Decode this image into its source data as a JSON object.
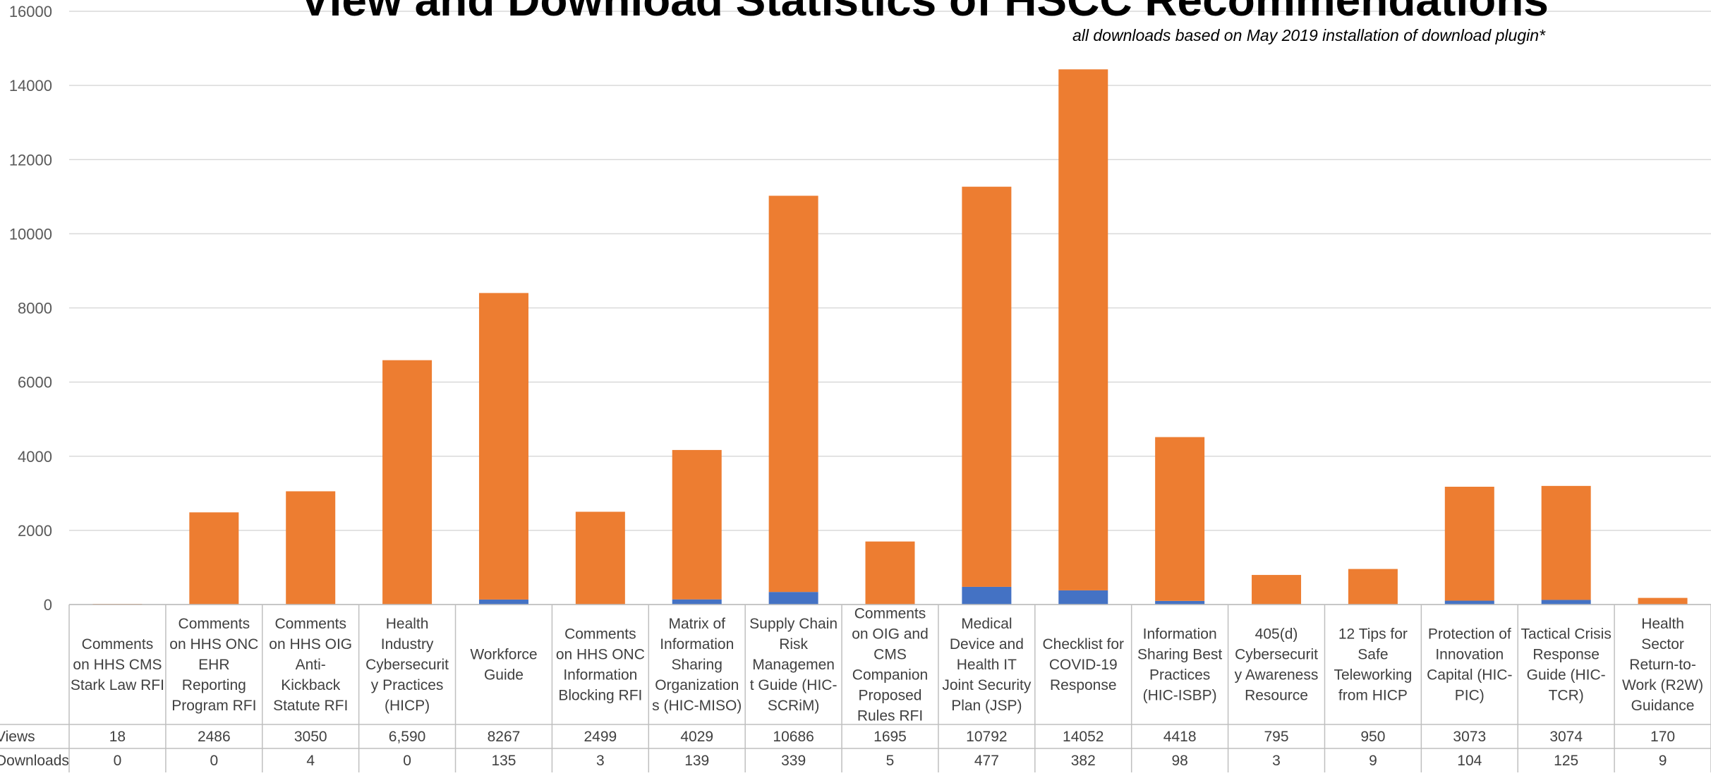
{
  "chart_data": {
    "type": "bar",
    "stacked": true,
    "title": "View and Download Statistics of HSCC Recommendations",
    "subtitle": "all downloads based on May 2019 installation of download plugin*",
    "ylim": [
      0,
      16000
    ],
    "yticks": [
      "0",
      "2000",
      "4000",
      "6000",
      "8000",
      "10000",
      "12000",
      "14000",
      "16000"
    ],
    "grid": true,
    "categories": [
      [
        "Comments",
        "on HHS CMS",
        "Stark Law RFI"
      ],
      [
        "Comments",
        "on HHS ONC",
        "EHR",
        "Reporting",
        "Program RFI"
      ],
      [
        "Comments",
        "on HHS OIG",
        "Anti-",
        "Kickback",
        "Statute RFI"
      ],
      [
        "Health",
        "Industry",
        "Cybersecurit",
        "y Practices",
        "(HICP)"
      ],
      [
        "Workforce",
        "Guide"
      ],
      [
        "Comments",
        "on HHS ONC",
        "Information",
        "Blocking RFI"
      ],
      [
        "Matrix of",
        "Information",
        "Sharing",
        "Organization",
        "s (HIC-MISO)"
      ],
      [
        "Supply Chain",
        "Risk",
        "Managemen",
        "t Guide (HIC-",
        "SCRiM)"
      ],
      [
        "Comments",
        "on OIG and",
        "CMS",
        "Companion",
        "Proposed",
        "Rules RFI"
      ],
      [
        "Medical",
        "Device and",
        "Health IT",
        "Joint Security",
        "Plan (JSP)"
      ],
      [
        "Checklist for",
        "COVID-19",
        "Response"
      ],
      [
        "Information",
        "Sharing Best",
        "Practices",
        "(HIC-ISBP)"
      ],
      [
        "405(d)",
        "Cybersecurit",
        "y Awareness",
        "Resource"
      ],
      [
        "12 Tips for",
        "Safe",
        "Teleworking",
        "from HICP"
      ],
      [
        "Protection of",
        "Innovation",
        "Capital (HIC-",
        "PIC)"
      ],
      [
        "Tactical Crisis",
        "Response",
        "Guide (HIC-",
        "TCR)"
      ],
      [
        "Health",
        "Sector",
        "Return-to-",
        "Work (R2W)",
        "Guidance"
      ]
    ],
    "series": [
      {
        "name": "Downloads",
        "color": "#4472C4",
        "values": [
          0,
          0,
          4,
          0,
          135,
          3,
          139,
          339,
          5,
          477,
          382,
          98,
          3,
          9,
          104,
          125,
          9
        ],
        "display": [
          "0",
          "0",
          "4",
          "0",
          "135",
          "3",
          "139",
          "339",
          "5",
          "477",
          "382",
          "98",
          "3",
          "9",
          "104",
          "125",
          "9"
        ]
      },
      {
        "name": "Views",
        "color": "#ED7D31",
        "values": [
          18,
          2486,
          3050,
          6590,
          8267,
          2499,
          4029,
          10686,
          1695,
          10792,
          14052,
          4418,
          795,
          950,
          3073,
          3074,
          170
        ],
        "display": [
          "18",
          "2486",
          "3050",
          "6,590",
          "8267",
          "2499",
          "4029",
          "10686",
          "1695",
          "10792",
          "14052",
          "4418",
          "795",
          "950",
          "3073",
          "3074",
          "170"
        ]
      }
    ],
    "table_rows": [
      {
        "label": "Views",
        "series": 1
      },
      {
        "label": "Downloads",
        "series": 0
      }
    ]
  }
}
